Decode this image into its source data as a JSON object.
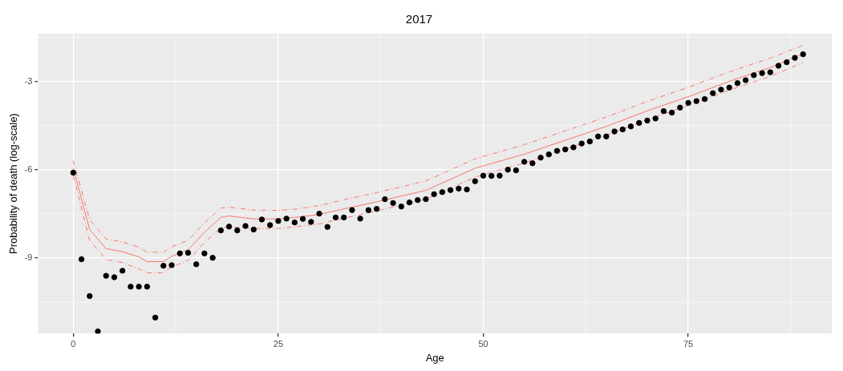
{
  "chart_data": {
    "type": "scatter",
    "title": "2017",
    "xlabel": "Age",
    "ylabel": "Probability of death (log-scale)",
    "xlim": [
      -4.3,
      92.5
    ],
    "xticks": [
      0,
      25,
      50,
      75
    ],
    "ylim": [
      -11.56,
      -1.38
    ],
    "yticks": [
      -3,
      -6,
      -9
    ],
    "grid": true,
    "legend": false,
    "series": [
      {
        "type": "scatter",
        "marker": "circle",
        "color": "#000000",
        "x": [
          0,
          1,
          2,
          3,
          4,
          5,
          6,
          7,
          8,
          9,
          10,
          11,
          12,
          13,
          14,
          15,
          16,
          17,
          18,
          19,
          20,
          21,
          22,
          23,
          24,
          25,
          26,
          27,
          28,
          29,
          30,
          31,
          32,
          33,
          34,
          35,
          36,
          37,
          38,
          39,
          40,
          41,
          42,
          43,
          44,
          45,
          46,
          47,
          48,
          49,
          50,
          51,
          52,
          53,
          54,
          55,
          56,
          57,
          58,
          59,
          60,
          61,
          62,
          63,
          64,
          65,
          66,
          67,
          68,
          69,
          70,
          71,
          72,
          73,
          74,
          75,
          76,
          77,
          78,
          79,
          80,
          81,
          82,
          83,
          84,
          85,
          86,
          87,
          88,
          89
        ],
        "values": [
          -6.1,
          -9.04,
          -10.29,
          -11.49,
          -9.6,
          -9.65,
          -9.43,
          -9.97,
          -9.97,
          -9.97,
          -11.02,
          -9.26,
          -9.24,
          -8.84,
          -8.82,
          -9.21,
          -8.84,
          -8.99,
          -8.06,
          -7.93,
          -8.06,
          -7.91,
          -8.03,
          -7.69,
          -7.88,
          -7.74,
          -7.66,
          -7.79,
          -7.67,
          -7.77,
          -7.49,
          -7.94,
          -7.62,
          -7.62,
          -7.37,
          -7.66,
          -7.37,
          -7.33,
          -7.0,
          -7.13,
          -7.25,
          -7.11,
          -7.03,
          -7.0,
          -6.83,
          -6.76,
          -6.69,
          -6.64,
          -6.67,
          -6.39,
          -6.2,
          -6.21,
          -6.2,
          -6.0,
          -6.02,
          -5.73,
          -5.78,
          -5.59,
          -5.48,
          -5.36,
          -5.31,
          -5.24,
          -5.11,
          -5.04,
          -4.87,
          -4.87,
          -4.7,
          -4.63,
          -4.53,
          -4.41,
          -4.33,
          -4.26,
          -4.01,
          -4.06,
          -3.89,
          -3.73,
          -3.67,
          -3.6,
          -3.4,
          -3.28,
          -3.21,
          -3.06,
          -2.96,
          -2.79,
          -2.72,
          -2.69,
          -2.47,
          -2.35,
          -2.2,
          -2.08
        ]
      },
      {
        "type": "line",
        "marker": "none",
        "line_style": "solid",
        "color": "#f8766d",
        "x": [
          0,
          2,
          4,
          6,
          8,
          9,
          11,
          12,
          14,
          16,
          18,
          19,
          22,
          25,
          27,
          30,
          33,
          37,
          43,
          49,
          55,
          60,
          65,
          70,
          75,
          80,
          85,
          89
        ],
        "values": [
          -5.95,
          -8.03,
          -8.68,
          -8.78,
          -8.96,
          -9.12,
          -9.12,
          -8.94,
          -8.72,
          -8.12,
          -7.62,
          -7.57,
          -7.67,
          -7.67,
          -7.62,
          -7.52,
          -7.33,
          -7.09,
          -6.7,
          -5.95,
          -5.47,
          -5.0,
          -4.53,
          -4.0,
          -3.52,
          -3.0,
          -2.53,
          -2.06
        ]
      },
      {
        "type": "line",
        "marker": "none",
        "line_style": "dashed",
        "color": "#f8766d",
        "x": [
          0,
          2,
          4,
          6,
          8,
          9,
          11,
          12,
          14,
          16,
          18,
          19,
          22,
          25,
          27,
          30,
          33,
          37,
          43,
          49,
          55,
          60,
          65,
          70,
          75,
          80,
          85,
          89
        ],
        "values": [
          -5.7,
          -7.7,
          -8.35,
          -8.45,
          -8.63,
          -8.8,
          -8.8,
          -8.62,
          -8.4,
          -7.8,
          -7.3,
          -7.27,
          -7.37,
          -7.38,
          -7.34,
          -7.22,
          -7.02,
          -6.78,
          -6.38,
          -5.63,
          -5.15,
          -4.68,
          -4.21,
          -3.68,
          -3.2,
          -2.68,
          -2.21,
          -1.78
        ]
      },
      {
        "type": "line",
        "marker": "none",
        "line_style": "dashed",
        "color": "#f8766d",
        "x": [
          0,
          2,
          4,
          6,
          8,
          9,
          11,
          12,
          14,
          16,
          18,
          19,
          22,
          25,
          27,
          30,
          33,
          37,
          43,
          49,
          55,
          60,
          65,
          70,
          75,
          80,
          85,
          89
        ],
        "values": [
          -6.2,
          -8.4,
          -9.05,
          -9.15,
          -9.37,
          -9.5,
          -9.5,
          -9.3,
          -9.08,
          -8.47,
          -7.97,
          -7.93,
          -8.0,
          -7.99,
          -7.94,
          -7.84,
          -7.65,
          -7.4,
          -7.0,
          -6.25,
          -5.77,
          -5.3,
          -4.83,
          -4.3,
          -3.82,
          -3.3,
          -2.83,
          -2.36
        ]
      }
    ]
  }
}
